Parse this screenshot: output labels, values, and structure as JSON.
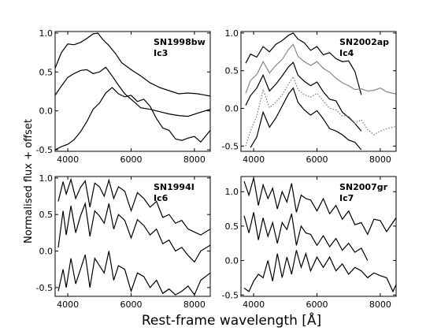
{
  "figure": {
    "ylabel": "Normalised flux + offset",
    "xlabel": "Rest-frame wavelength [Å]"
  },
  "chart_data": [
    {
      "type": "line",
      "label_line1": "SN1998bw",
      "label_line2": "Ic3",
      "xlim": [
        3600,
        8500
      ],
      "ylim": [
        -0.52,
        1.02
      ],
      "xticks": [
        4000,
        6000,
        8000
      ],
      "xtick_labels": [
        "4000",
        "6000",
        "8000"
      ],
      "yticks": [
        -0.5,
        0.0,
        0.5,
        1.0
      ],
      "ytick_labels": [
        "-0.5",
        "0.0",
        "0.5",
        "1.0"
      ],
      "series": [
        {
          "style": "solid",
          "color": "#000000",
          "x": [
            3600,
            3800,
            4000,
            4200,
            4400,
            4600,
            4800,
            4950,
            5100,
            5300,
            5500,
            5700,
            6000,
            6300,
            6600,
            6900,
            7200,
            7500,
            7800,
            8100,
            8500
          ],
          "y": [
            0.55,
            0.75,
            0.86,
            0.85,
            0.88,
            0.93,
            0.99,
            1.0,
            0.92,
            0.84,
            0.74,
            0.62,
            0.53,
            0.45,
            0.36,
            0.3,
            0.26,
            0.22,
            0.23,
            0.22,
            0.19
          ]
        },
        {
          "style": "solid",
          "color": "#000000",
          "x": [
            3600,
            3800,
            4000,
            4200,
            4400,
            4600,
            4800,
            5000,
            5200,
            5400,
            5600,
            5800,
            6000,
            6300,
            6600,
            6900,
            7200,
            7500,
            7800,
            8100,
            8500
          ],
          "y": [
            0.2,
            0.32,
            0.43,
            0.48,
            0.52,
            0.53,
            0.48,
            0.5,
            0.56,
            0.45,
            0.33,
            0.22,
            0.15,
            0.04,
            0.02,
            -0.01,
            -0.04,
            -0.06,
            -0.07,
            -0.03,
            0.02
          ]
        },
        {
          "style": "solid",
          "color": "#000000",
          "x": [
            3600,
            3800,
            4000,
            4200,
            4400,
            4600,
            4800,
            5000,
            5200,
            5400,
            5600,
            5800,
            6000,
            6200,
            6400,
            6600,
            6800,
            7000,
            7200,
            7400,
            7600,
            7800,
            8000,
            8200,
            8500
          ],
          "y": [
            -0.5,
            -0.46,
            -0.43,
            -0.37,
            -0.27,
            -0.14,
            0.02,
            0.1,
            0.23,
            0.3,
            0.22,
            0.18,
            0.2,
            0.12,
            0.15,
            0.06,
            -0.1,
            -0.22,
            -0.25,
            -0.36,
            -0.38,
            -0.35,
            -0.33,
            -0.4,
            -0.25
          ]
        }
      ]
    },
    {
      "type": "line",
      "label_line1": "SN2002ap",
      "label_line2": "Ic4",
      "xlim": [
        3600,
        8500
      ],
      "ylim": [
        -0.57,
        1.02
      ],
      "xticks": [
        4000,
        6000,
        8000
      ],
      "xtick_labels": [
        "4000",
        "6000",
        "8000"
      ],
      "yticks": [
        -0.5,
        0.0,
        0.5,
        1.0
      ],
      "ytick_labels": [
        "-0.5",
        "0.0",
        "0.5",
        "1.0"
      ],
      "series": [
        {
          "style": "solid",
          "color": "#000000",
          "x": [
            3750,
            3900,
            4100,
            4300,
            4500,
            4700,
            4900,
            5100,
            5250,
            5400,
            5600,
            5800,
            6000,
            6200,
            6400,
            6600,
            6800,
            7000,
            7200,
            7400
          ],
          "y": [
            0.6,
            0.72,
            0.68,
            0.82,
            0.75,
            0.85,
            0.9,
            0.97,
            1.0,
            0.92,
            0.87,
            0.77,
            0.82,
            0.71,
            0.74,
            0.66,
            0.62,
            0.63,
            0.49,
            0.18
          ]
        },
        {
          "style": "solid",
          "color": "#888888",
          "x": [
            3750,
            3900,
            4100,
            4300,
            4500,
            4700,
            4900,
            5100,
            5250,
            5400,
            5600,
            5800,
            6000,
            6200,
            6400,
            6600,
            6800,
            7000,
            7200,
            7400,
            7600,
            7800,
            8000,
            8200,
            8500
          ],
          "y": [
            0.2,
            0.37,
            0.45,
            0.62,
            0.47,
            0.57,
            0.65,
            0.78,
            0.85,
            0.69,
            0.62,
            0.57,
            0.62,
            0.53,
            0.48,
            0.4,
            0.34,
            0.3,
            0.25,
            0.26,
            0.23,
            0.24,
            0.27,
            0.22,
            0.19
          ]
        },
        {
          "style": "solid",
          "color": "#000000",
          "x": [
            3750,
            3900,
            4100,
            4300,
            4500,
            4700,
            4900,
            5100,
            5250,
            5400,
            5600,
            5800,
            6000,
            6200,
            6400,
            6600,
            6800,
            7000,
            7200,
            7400
          ],
          "y": [
            0.04,
            0.17,
            0.27,
            0.44,
            0.23,
            0.32,
            0.43,
            0.55,
            0.61,
            0.44,
            0.36,
            0.3,
            0.35,
            0.22,
            0.12,
            0.1,
            -0.05,
            -0.12,
            -0.2,
            -0.3
          ]
        },
        {
          "style": "dotted",
          "color": "#777777",
          "x": [
            3750,
            3900,
            4100,
            4300,
            4500,
            4700,
            4900,
            5100,
            5250,
            5400,
            5600,
            5800,
            6000,
            6200,
            6400,
            6600,
            6800,
            7000,
            7200,
            7400,
            7600,
            7800,
            8000,
            8200,
            8500
          ],
          "y": [
            -0.5,
            -0.3,
            -0.1,
            0.25,
            0.01,
            0.08,
            0.18,
            0.32,
            0.42,
            0.25,
            0.18,
            0.15,
            0.2,
            0.1,
            0.0,
            -0.02,
            -0.1,
            -0.1,
            -0.2,
            -0.15,
            -0.28,
            -0.35,
            -0.3,
            -0.27,
            -0.24
          ]
        },
        {
          "style": "solid",
          "color": "#000000",
          "x": [
            3900,
            4100,
            4300,
            4500,
            4700,
            4900,
            5100,
            5250,
            5400,
            5600,
            5800,
            6000,
            6200,
            6400,
            6600,
            6800,
            7000,
            7200,
            7400
          ],
          "y": [
            -0.52,
            -0.38,
            -0.05,
            -0.25,
            -0.13,
            0.03,
            0.19,
            0.27,
            0.08,
            -0.02,
            -0.09,
            -0.03,
            -0.14,
            -0.27,
            -0.3,
            -0.35,
            -0.42,
            -0.45,
            -0.55
          ]
        }
      ]
    },
    {
      "type": "line",
      "label_line1": "SN1994I",
      "label_line2": "Ic6",
      "xlim": [
        3600,
        8500
      ],
      "ylim": [
        -0.62,
        1.02
      ],
      "xticks": [
        4000,
        6000,
        8000
      ],
      "xtick_labels": [
        "4000",
        "6000",
        "8000"
      ],
      "yticks": [
        -0.5,
        0.0,
        0.5,
        1.0
      ],
      "ytick_labels": [
        "-0.5",
        "0.0",
        "0.5",
        "1.0"
      ],
      "series": [
        {
          "style": "solid",
          "color": "#000000",
          "x": [
            3700,
            3850,
            3950,
            4100,
            4250,
            4400,
            4550,
            4700,
            4850,
            5000,
            5150,
            5300,
            5450,
            5600,
            5800,
            6000,
            6200,
            6400,
            6600,
            6800,
            7000,
            7200,
            7400,
            7600,
            7800,
            8000,
            8200,
            8500
          ],
          "y": [
            0.68,
            0.95,
            0.78,
            0.98,
            0.72,
            0.87,
            0.96,
            0.6,
            0.93,
            0.88,
            0.75,
            0.97,
            0.72,
            0.88,
            0.82,
            0.55,
            0.8,
            0.72,
            0.6,
            0.68,
            0.46,
            0.5,
            0.38,
            0.42,
            0.3,
            0.26,
            0.22,
            0.3
          ]
        },
        {
          "style": "solid",
          "color": "#000000",
          "x": [
            3700,
            3850,
            3950,
            4100,
            4250,
            4400,
            4550,
            4700,
            4850,
            5000,
            5150,
            5300,
            5450,
            5600,
            5800,
            6000,
            6200,
            6400,
            6600,
            6800,
            7000,
            7200,
            7400,
            7600,
            7800,
            8000,
            8200,
            8500
          ],
          "y": [
            0.05,
            0.55,
            0.22,
            0.62,
            0.25,
            0.48,
            0.65,
            0.2,
            0.55,
            0.48,
            0.38,
            0.65,
            0.3,
            0.5,
            0.42,
            0.18,
            0.43,
            0.35,
            0.22,
            0.3,
            0.1,
            0.15,
            0.0,
            0.05,
            -0.06,
            -0.15,
            0.0,
            0.08
          ]
        },
        {
          "style": "solid",
          "color": "#000000",
          "x": [
            3700,
            3850,
            3950,
            4100,
            4250,
            4400,
            4550,
            4700,
            4850,
            5000,
            5150,
            5300,
            5450,
            5600,
            5800,
            6000,
            6200,
            6400,
            6600,
            6800,
            7000,
            7200,
            7400,
            7600,
            7800,
            8000,
            8200,
            8500
          ],
          "y": [
            -0.55,
            -0.25,
            -0.5,
            -0.1,
            -0.45,
            -0.25,
            -0.05,
            -0.5,
            -0.1,
            -0.2,
            -0.3,
            0.0,
            -0.4,
            -0.2,
            -0.25,
            -0.55,
            -0.3,
            -0.35,
            -0.5,
            -0.4,
            -0.58,
            -0.52,
            -0.6,
            -0.55,
            -0.48,
            -0.6,
            -0.4,
            -0.3
          ]
        }
      ]
    },
    {
      "type": "line",
      "label_line1": "SN2007gr",
      "label_line2": "Ic7",
      "xlim": [
        3600,
        8500
      ],
      "ylim": [
        -0.52,
        1.22
      ],
      "xticks": [
        4000,
        6000,
        8000
      ],
      "xtick_labels": [
        "4000",
        "6000",
        "8000"
      ],
      "yticks": [
        -0.5,
        0.0,
        0.5,
        1.0
      ],
      "ytick_labels": [
        "-0.5",
        "0.0",
        "0.5",
        "1.0"
      ],
      "series": [
        {
          "style": "solid",
          "color": "#000000",
          "x": [
            3700,
            3850,
            4000,
            4150,
            4300,
            4450,
            4600,
            4750,
            4900,
            5050,
            5200,
            5350,
            5500,
            5650,
            5800,
            6000,
            6200,
            6400,
            6600,
            6800,
            7000,
            7200,
            7400,
            7600,
            7800,
            8000,
            8200,
            8500
          ],
          "y": [
            1.15,
            0.95,
            1.2,
            0.8,
            1.1,
            0.9,
            1.05,
            0.75,
            1.0,
            0.85,
            1.12,
            0.7,
            0.95,
            0.9,
            0.88,
            0.72,
            0.9,
            0.68,
            0.8,
            0.6,
            0.72,
            0.52,
            0.55,
            0.38,
            0.6,
            0.58,
            0.42,
            0.62
          ]
        },
        {
          "style": "solid",
          "color": "#000000",
          "x": [
            3700,
            3850,
            4000,
            4150,
            4300,
            4450,
            4600,
            4750,
            4900,
            5050,
            5200,
            5350,
            5500,
            5650,
            5800,
            6000,
            6200,
            6400,
            6600,
            6800,
            7000,
            7200,
            7400,
            7600
          ],
          "y": [
            0.65,
            0.4,
            0.7,
            0.3,
            0.62,
            0.35,
            0.55,
            0.25,
            0.55,
            0.45,
            0.68,
            0.22,
            0.5,
            0.4,
            0.38,
            0.22,
            0.36,
            0.2,
            0.32,
            0.15,
            0.25,
            0.12,
            0.18,
            0.0
          ]
        },
        {
          "style": "solid",
          "color": "#000000",
          "x": [
            3700,
            3850,
            4000,
            4150,
            4300,
            4450,
            4600,
            4750,
            4900,
            5050,
            5200,
            5350,
            5500,
            5650,
            5800,
            6000,
            6200,
            6400,
            6600,
            6800,
            7000,
            7200,
            7400,
            7600,
            7800,
            8000,
            8200,
            8400,
            8500
          ],
          "y": [
            -0.4,
            -0.45,
            -0.3,
            -0.2,
            -0.25,
            0.0,
            -0.3,
            0.1,
            -0.25,
            0.05,
            -0.2,
            0.15,
            -0.1,
            0.1,
            -0.15,
            0.05,
            -0.1,
            0.05,
            -0.15,
            -0.05,
            -0.2,
            -0.1,
            -0.15,
            -0.25,
            -0.18,
            -0.22,
            -0.25,
            -0.45,
            -0.35
          ]
        }
      ]
    }
  ]
}
